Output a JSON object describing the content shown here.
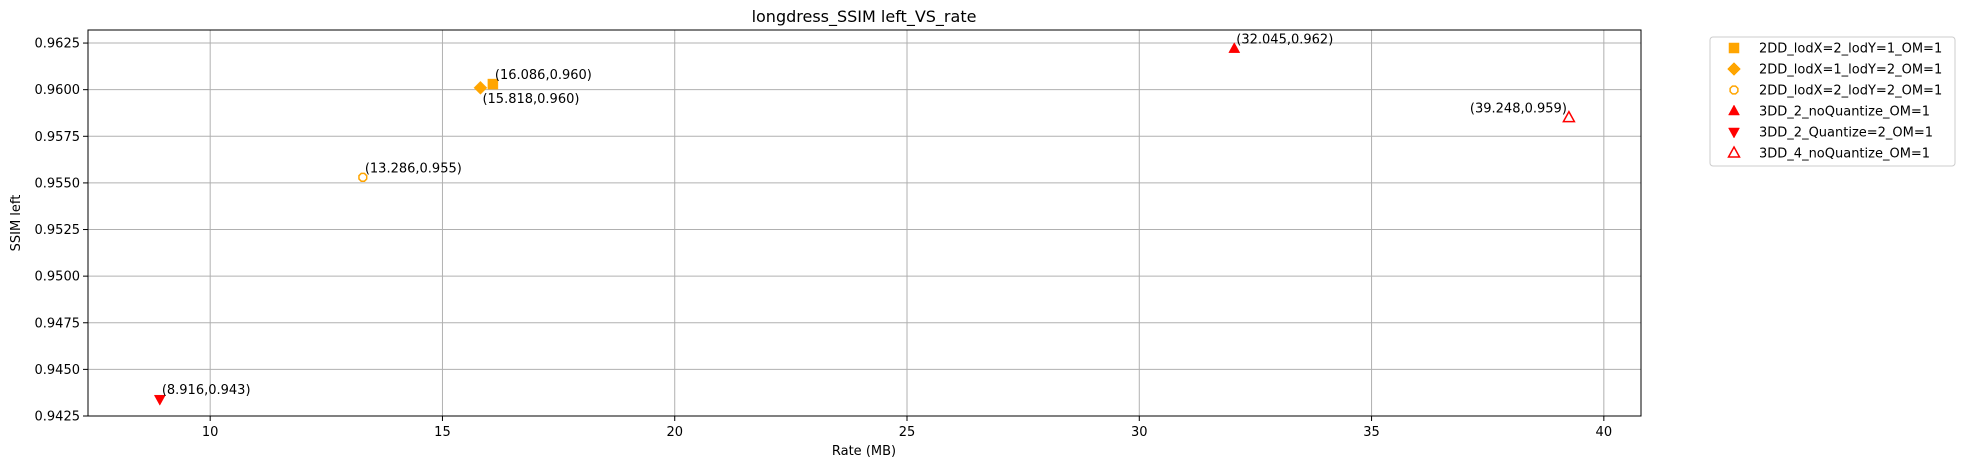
{
  "chart_data": {
    "type": "scatter",
    "title": "longdress_SSIM left_VS_rate",
    "xlabel": "Rate (MB)",
    "ylabel": "SSIM left",
    "xlim": [
      7.37,
      40.8
    ],
    "ylim": [
      0.9425,
      0.9632
    ],
    "xticks": [
      10,
      15,
      20,
      25,
      30,
      35,
      40
    ],
    "yticks": [
      0.9425,
      0.945,
      0.9475,
      0.95,
      0.9525,
      0.955,
      0.9575,
      0.96,
      0.9625
    ],
    "ytick_labels": [
      "0.9425",
      "0.9450",
      "0.9475",
      "0.9500",
      "0.9525",
      "0.9550",
      "0.9575",
      "0.9600",
      "0.9625"
    ],
    "grid": true,
    "legend_position": "outside-right",
    "series": [
      {
        "name": "2DD_lodX=2_lodY=1_OM=1",
        "marker": "square",
        "color": "#FFA500",
        "filled": true,
        "points": [
          {
            "x": 16.086,
            "y": 0.9603,
            "label": "(16.086,0.960)",
            "label_pos": "above-right"
          }
        ]
      },
      {
        "name": "2DD_lodX=1_lodY=2_OM=1",
        "marker": "diamond",
        "color": "#FFA500",
        "filled": true,
        "points": [
          {
            "x": 15.818,
            "y": 0.9601,
            "label": "(15.818,0.960)",
            "label_pos": "below-right"
          }
        ]
      },
      {
        "name": "2DD_lodX=2_lodY=2_OM=1",
        "marker": "octagon",
        "color": "#FFA500",
        "filled": false,
        "points": [
          {
            "x": 13.286,
            "y": 0.9553,
            "label": "(13.286,0.955)",
            "label_pos": "above-right"
          }
        ]
      },
      {
        "name": "3DD_2_noQuantize_OM=1",
        "marker": "triangle-up",
        "color": "#FF0000",
        "filled": true,
        "points": [
          {
            "x": 32.045,
            "y": 0.9622,
            "label": "(32.045,0.962)",
            "label_pos": "above-right"
          }
        ]
      },
      {
        "name": "3DD_2_Quantize=2_OM=1",
        "marker": "triangle-down",
        "color": "#FF0000",
        "filled": true,
        "points": [
          {
            "x": 8.916,
            "y": 0.9434,
            "label": "(8.916,0.943)",
            "label_pos": "above-right"
          }
        ]
      },
      {
        "name": "3DD_4_noQuantize_OM=1",
        "marker": "triangle-up",
        "color": "#FF0000",
        "filled": false,
        "points": [
          {
            "x": 39.248,
            "y": 0.9585,
            "label": "(39.248,0.959)",
            "label_pos": "above-left"
          }
        ]
      }
    ]
  }
}
